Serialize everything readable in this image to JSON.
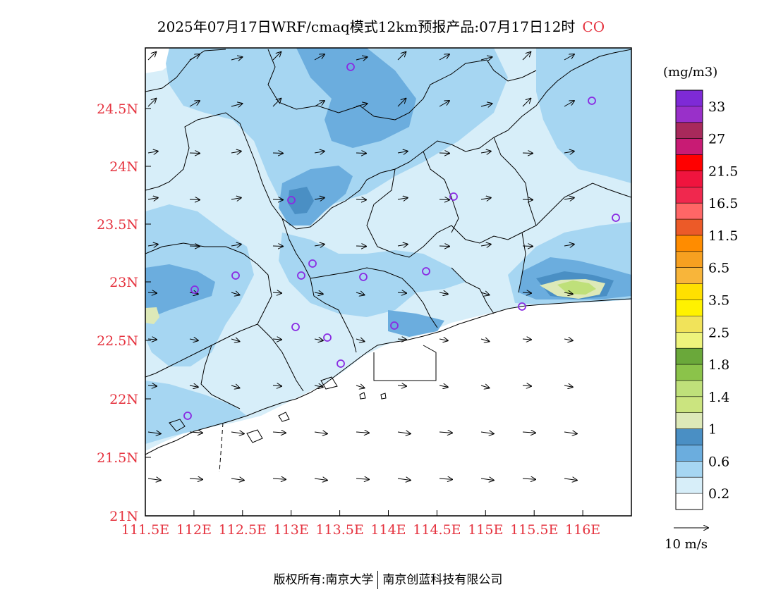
{
  "title": {
    "main": "2025年07月17日WRF/cmaq模式12km预报产品:07月17日12时",
    "species": "CO"
  },
  "axes": {
    "x_ticks": [
      "111.5E",
      "112E",
      "112.5E",
      "113E",
      "113.5E",
      "114E",
      "114.5E",
      "115E",
      "115.5E",
      "116E"
    ],
    "y_ticks": [
      "24.5N",
      "24N",
      "23.5N",
      "23N",
      "22.5N",
      "22N",
      "21.5N",
      "21N"
    ]
  },
  "colorbar": {
    "unit": "(mg/m3)",
    "labels": [
      "33",
      "27",
      "21.5",
      "16.5",
      "11.5",
      "6.5",
      "3.5",
      "2.5",
      "1.8",
      "1.4",
      "1",
      "0.6",
      "0.2"
    ],
    "colors": [
      "#7e2ad6",
      "#9930c9",
      "#a8295b",
      "#c81b74",
      "#ff0000",
      "#f0143e",
      "#f0284e",
      "#ff6666",
      "#ec5a28",
      "#ff8c00",
      "#f7a020",
      "#f8b53a",
      "#ffe000",
      "#fff200",
      "#f1e35a",
      "#eef47c",
      "#6aa83a",
      "#8bc34a",
      "#bfe07a",
      "#cbe47f",
      "#dde9b8",
      "#4a8fc4",
      "#6badde",
      "#a6d6f2",
      "#d7eef9",
      "#ffffff"
    ]
  },
  "wind_legend": {
    "label": "10 m/s"
  },
  "footer": {
    "left": "版权所有:南京大学",
    "right": "南京创蓝科技有限公司"
  },
  "map": {
    "palette": {
      "ocean": "#ffffff",
      "c02": "#d7eef9",
      "c06": "#a6d6f2",
      "c08": "#6badde",
      "c1": "#4a8fc4",
      "c1b": "#dde9b8",
      "c14": "#bfe07a",
      "station": "#8a2be2"
    }
  }
}
